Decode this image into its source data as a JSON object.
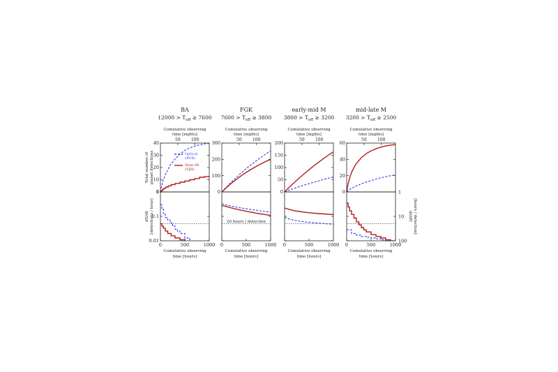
{
  "figure": {
    "shared_labels": {
      "top_axis": [
        "Cumulative observing",
        "time [nights]"
      ],
      "bottom_axis": [
        "Cumulative observing",
        "time [hours]"
      ],
      "left_top_ylabel": [
        "Total number of",
        "planet detections"
      ],
      "left_bottom_ylabel": [
        "dN/dt",
        "[detections / hour]"
      ],
      "right_bottom_ylabel": [
        "dt/dN",
        "[hours / detection]"
      ],
      "threshold_label": "20 hours / detection",
      "legend": [
        {
          "label": "Optical",
          "sublabel": "(BVR)",
          "color": "#3b46e8",
          "style": "dashed"
        },
        {
          "label": "Near-IR",
          "sublabel": "(YJH)",
          "color": "#b01c1c",
          "style": "solid"
        }
      ]
    }
  },
  "colors": {
    "optical": "#3b46e8",
    "nearir": "#b01c1c",
    "threshold": "#555555"
  },
  "chart_data": [
    {
      "type": "line",
      "panel": "BA",
      "title": "BA",
      "subtitle": [
        "12000 > T",
        "eff",
        " ≥  7600"
      ],
      "x_top": {
        "ticks": [
          50,
          100
        ],
        "labels": [
          "50",
          "100"
        ]
      },
      "x_bottom": {
        "range": [
          0,
          1000
        ],
        "ticks": [
          0,
          500,
          1000
        ],
        "labels": [
          "0",
          "500",
          "1000"
        ]
      },
      "top": {
        "ylim": [
          0,
          40
        ],
        "yticks": [
          0,
          10,
          20,
          30,
          40
        ],
        "ytick_labels": [
          "0",
          "10",
          "20",
          "30",
          "40"
        ],
        "series": [
          {
            "name": "Optical (BVR)",
            "style": "dashed",
            "step": false,
            "x": [
              0,
              50,
              100,
              150,
              200,
              300,
              400,
              500,
              600,
              700,
              800,
              900,
              1000
            ],
            "y": [
              0,
              9,
              14,
              18,
              22,
              27,
              31,
              34,
              36,
              37.5,
              38.5,
              39.3,
              40
            ]
          },
          {
            "name": "Near-IR (YJH)",
            "style": "solid",
            "step": true,
            "x": [
              0,
              20,
              40,
              70,
              110,
              160,
              220,
              300,
              400,
              500,
              600,
              700,
              800,
              900,
              1000
            ],
            "y": [
              0,
              1,
              2,
              3,
              4,
              5,
              6,
              7,
              8,
              9,
              10,
              11,
              12,
              12.5,
              13
            ]
          }
        ]
      },
      "bottom": {
        "ylog": true,
        "ylim": [
          0.01,
          1
        ],
        "yticks": [
          0.01,
          0.1,
          1
        ],
        "ytick_labels": [
          "0.01",
          "0.1",
          "1"
        ],
        "series": [
          {
            "name": "Optical (BVR)",
            "style": "dashed",
            "step": true,
            "x": [
              0,
              30,
              60,
              100,
              150,
              200,
              250,
              300,
              350,
              400,
              500,
              600
            ],
            "y": [
              0.3,
              0.2,
              0.13,
              0.09,
              0.07,
              0.055,
              0.04,
              0.03,
              0.025,
              0.02,
              0.013,
              0.01
            ]
          },
          {
            "name": "Near-IR (YJH)",
            "style": "solid",
            "step": true,
            "x": [
              0,
              30,
              60,
              100,
              150,
              220,
              300,
              400,
              500
            ],
            "y": [
              0.05,
              0.04,
              0.033,
              0.025,
              0.02,
              0.016,
              0.013,
              0.011,
              0.01
            ]
          }
        ]
      },
      "threshold_y": 0.05,
      "show_threshold_label": false,
      "show_legend": true,
      "show_left_labels": true,
      "show_right_labels": false
    },
    {
      "type": "line",
      "panel": "FGK",
      "title": "FGK",
      "subtitle": [
        "7600 > T",
        "eff",
        " ≥  3800"
      ],
      "x_top": {
        "ticks": [
          50,
          100
        ],
        "labels": [
          "50",
          "100"
        ]
      },
      "x_bottom": {
        "range": [
          0,
          1000
        ],
        "ticks": [
          0,
          500,
          1000
        ],
        "labels": [
          "0",
          "500",
          "1000"
        ]
      },
      "top": {
        "ylim": [
          0,
          300
        ],
        "yticks": [
          0,
          100,
          200,
          300
        ],
        "ytick_labels": [
          "0",
          "100",
          "200",
          "300"
        ],
        "series": [
          {
            "name": "Optical (BVR)",
            "style": "dashed",
            "step": false,
            "x": [
              0,
              100,
              200,
              300,
              400,
              500,
              600,
              700,
              800,
              900,
              1000
            ],
            "y": [
              0,
              32,
              62,
              90,
              117,
              143,
              167,
              190,
              212,
              233,
              252
            ]
          },
          {
            "name": "Near-IR (YJH)",
            "style": "solid",
            "step": false,
            "x": [
              0,
              100,
              200,
              300,
              400,
              500,
              600,
              700,
              800,
              900,
              1000
            ],
            "y": [
              0,
              28,
              54,
              78,
              100,
              120,
              139,
              156,
              172,
              187,
              200
            ]
          }
        ]
      },
      "bottom": {
        "ylog": true,
        "ylim": [
          0.01,
          1
        ],
        "yticks": [
          0.01,
          0.1,
          1
        ],
        "ytick_labels": [
          "",
          "",
          ""
        ],
        "series": [
          {
            "name": "Optical (BVR)",
            "style": "dashed",
            "step": false,
            "x": [
              0,
              100,
              200,
              300,
              400,
              500,
              600,
              700,
              800,
              900,
              1000
            ],
            "y": [
              0.33,
              0.29,
              0.26,
              0.24,
              0.22,
              0.205,
              0.19,
              0.178,
              0.167,
              0.157,
              0.148
            ]
          },
          {
            "name": "Near-IR (YJH)",
            "style": "solid",
            "step": false,
            "x": [
              0,
              100,
              200,
              300,
              400,
              500,
              600,
              700,
              800,
              900,
              1000
            ],
            "y": [
              0.28,
              0.25,
              0.22,
              0.197,
              0.178,
              0.162,
              0.148,
              0.136,
              0.126,
              0.117,
              0.109
            ]
          }
        ]
      },
      "threshold_y": 0.05,
      "show_threshold_label": true,
      "show_legend": false,
      "show_left_labels": false,
      "show_right_labels": false
    },
    {
      "type": "line",
      "panel": "early-mid M",
      "title": "early-mid M",
      "subtitle": [
        "3800 > T",
        "eff",
        " ≥  3200"
      ],
      "x_top": {
        "ticks": [
          50,
          100
        ],
        "labels": [
          "50",
          "100"
        ]
      },
      "x_bottom": {
        "range": [
          0,
          1000
        ],
        "ticks": [
          0,
          500,
          1000
        ],
        "labels": [
          "0",
          "500",
          "1000"
        ]
      },
      "top": {
        "ylim": [
          0,
          200
        ],
        "yticks": [
          0,
          50,
          100,
          150,
          200
        ],
        "ytick_labels": [
          "0",
          "50",
          "100",
          "150",
          "200"
        ],
        "series": [
          {
            "name": "Optical (BVR)",
            "style": "dashed",
            "step": false,
            "x": [
              0,
              100,
              200,
              300,
              400,
              500,
              600,
              700,
              800,
              900,
              1000
            ],
            "y": [
              0,
              8,
              15,
              21.5,
              28,
              34,
              40,
              45.5,
              51,
              56,
              61
            ]
          },
          {
            "name": "Near-IR (YJH)",
            "style": "solid",
            "step": false,
            "x": [
              0,
              100,
              200,
              300,
              400,
              500,
              600,
              700,
              800,
              900,
              1000
            ],
            "y": [
              0,
              20,
              39,
              57,
              74,
              91,
              107,
              122,
              137,
              151,
              164
            ]
          }
        ]
      },
      "bottom": {
        "ylog": true,
        "ylim": [
          0.01,
          1
        ],
        "yticks": [
          0.01,
          0.1,
          1
        ],
        "ytick_labels": [
          "",
          "",
          ""
        ],
        "series": [
          {
            "name": "Optical (BVR)",
            "style": "dashed",
            "step": false,
            "x": [
              0,
              100,
              200,
              300,
              400,
              500,
              600,
              700,
              800,
              900,
              1000
            ],
            "y": [
              0.09,
              0.077,
              0.069,
              0.064,
              0.06,
              0.057,
              0.055,
              0.053,
              0.051,
              0.049,
              0.048
            ]
          },
          {
            "name": "Near-IR (YJH)",
            "style": "solid",
            "step": false,
            "x": [
              0,
              100,
              200,
              300,
              400,
              500,
              600,
              700,
              800,
              900,
              1000
            ],
            "y": [
              0.22,
              0.19,
              0.17,
              0.158,
              0.148,
              0.141,
              0.135,
              0.13,
              0.126,
              0.122,
              0.119
            ]
          }
        ]
      },
      "threshold_y": 0.05,
      "show_threshold_label": false,
      "show_legend": false,
      "show_left_labels": false,
      "show_right_labels": false
    },
    {
      "type": "line",
      "panel": "mid-late M",
      "title": "mid-late M",
      "subtitle": [
        "3200 > T",
        "eff",
        " ≥  2500"
      ],
      "x_top": {
        "ticks": [
          50,
          100
        ],
        "labels": [
          "50",
          "100"
        ]
      },
      "x_bottom": {
        "range": [
          0,
          1000
        ],
        "ticks": [
          0,
          500,
          1000
        ],
        "labels": [
          "0",
          "500",
          "1000"
        ]
      },
      "top": {
        "ylim": [
          0,
          60
        ],
        "yticks": [
          0,
          20,
          40,
          60
        ],
        "ytick_labels": [
          "0",
          "20",
          "40",
          "60"
        ],
        "series": [
          {
            "name": "Optical (BVR)",
            "style": "dashed",
            "step": false,
            "x": [
              0,
              50,
              100,
              200,
              300,
              400,
              500,
              600,
              700,
              800,
              900,
              1000
            ],
            "y": [
              0,
              2.5,
              4.5,
              7.5,
              10,
              12,
              14,
              15.8,
              17.3,
              18.7,
              20,
              21
            ]
          },
          {
            "name": "Near-IR (YJH)",
            "style": "solid",
            "step": false,
            "x": [
              0,
              30,
              60,
              100,
              150,
              200,
              300,
              400,
              500,
              600,
              700,
              800,
              900,
              1000
            ],
            "y": [
              0,
              10,
              17,
              24,
              30,
              35,
              42,
              47,
              50.5,
              53,
              55,
              56.5,
              57.5,
              58
            ]
          }
        ]
      },
      "bottom": {
        "ylog": true,
        "ylim": [
          0.01,
          1
        ],
        "yticks": [
          0.01,
          0.1,
          1
        ],
        "ytick_labels": [
          "",
          "",
          ""
        ],
        "right_ticks": [
          1,
          10,
          100
        ],
        "right_tick_labels": [
          "1",
          "10",
          "100"
        ],
        "series": [
          {
            "name": "Optical (BVR)",
            "style": "dashed",
            "step": true,
            "x": [
              0,
              100,
              200,
              300,
              400,
              500,
              600,
              700,
              800,
              900,
              1000
            ],
            "y": [
              0.028,
              0.02,
              0.017,
              0.015,
              0.014,
              0.013,
              0.012,
              0.011,
              0.01,
              0.0095,
              0.009
            ]
          },
          {
            "name": "Near-IR (YJH)",
            "style": "solid",
            "step": true,
            "x": [
              0,
              30,
              60,
              100,
              150,
              200,
              250,
              300,
              350,
              400,
              500,
              600,
              700,
              800,
              900
            ],
            "y": [
              0.35,
              0.24,
              0.17,
              0.12,
              0.085,
              0.06,
              0.045,
              0.035,
              0.028,
              0.023,
              0.018,
              0.015,
              0.013,
              0.011,
              0.01
            ]
          }
        ]
      },
      "threshold_y": 0.05,
      "show_threshold_label": false,
      "show_legend": false,
      "show_left_labels": false,
      "show_right_labels": true
    }
  ]
}
